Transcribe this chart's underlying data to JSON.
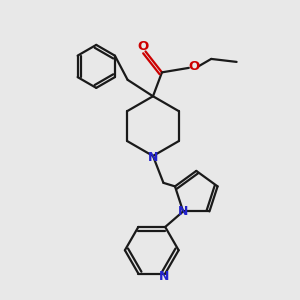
{
  "bg_color": "#e8e8e8",
  "bond_color": "#1a1a1a",
  "N_color": "#2222cc",
  "O_color": "#cc0000",
  "lw": 1.6,
  "fig_w": 3.0,
  "fig_h": 3.0,
  "dpi": 100,
  "xlim": [
    0,
    10
  ],
  "ylim": [
    0,
    10
  ]
}
